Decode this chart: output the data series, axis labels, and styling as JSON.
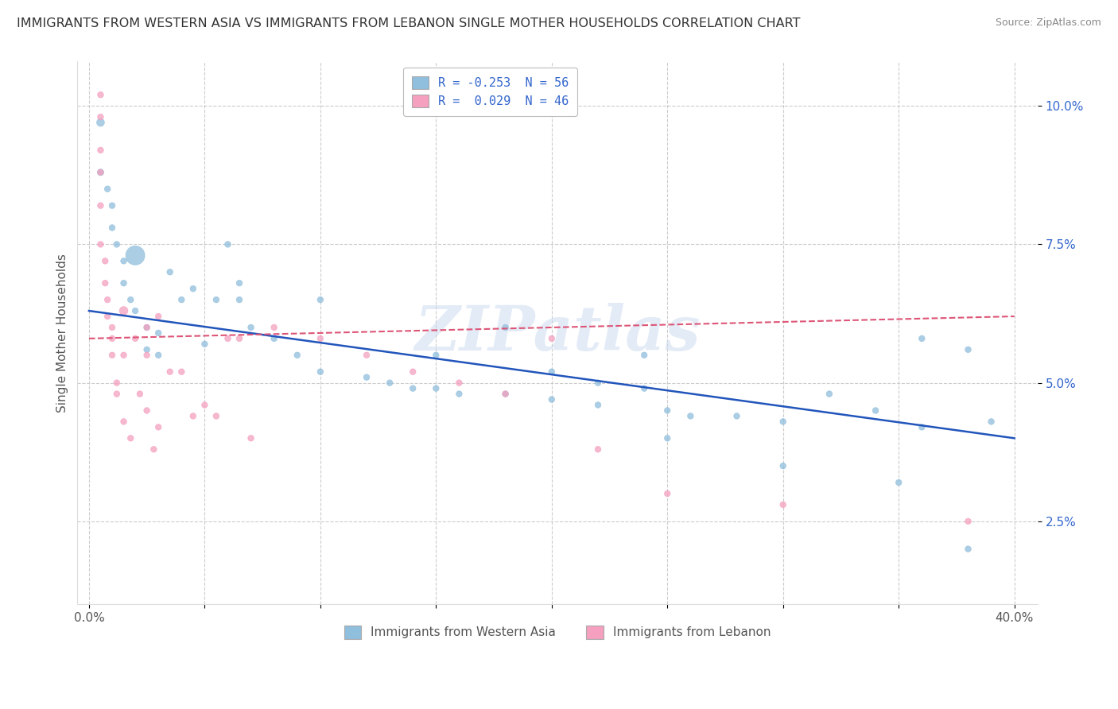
{
  "title": "IMMIGRANTS FROM WESTERN ASIA VS IMMIGRANTS FROM LEBANON SINGLE MOTHER HOUSEHOLDS CORRELATION CHART",
  "source": "Source: ZipAtlas.com",
  "ylabel": "Single Mother Households",
  "yticks_vals": [
    0.025,
    0.05,
    0.075,
    0.1
  ],
  "yticks_labels": [
    "2.5%",
    "5.0%",
    "7.5%",
    "10.0%"
  ],
  "xticks_vals": [
    0.0,
    0.05,
    0.1,
    0.15,
    0.2,
    0.25,
    0.3,
    0.35,
    0.4
  ],
  "xlim": [
    -0.005,
    0.41
  ],
  "ylim": [
    0.01,
    0.108
  ],
  "legend_blue": "R = -0.253  N = 56",
  "legend_pink": "R =  0.029  N = 46",
  "blue_color": "#90bedd",
  "pink_color": "#f4a0be",
  "blue_line_color": "#2255bb",
  "pink_line_color": "#dd5577",
  "watermark": "ZIPatlas",
  "legend_text_color": "#3366cc",
  "background_color": "#ffffff",
  "grid_color": "#cccccc",
  "blue_line_x": [
    0.0,
    0.4
  ],
  "blue_line_y": [
    0.063,
    0.04
  ],
  "pink_line_x": [
    0.0,
    0.4
  ],
  "pink_line_y": [
    0.058,
    0.062
  ],
  "blue_x": [
    0.005,
    0.005,
    0.008,
    0.01,
    0.01,
    0.012,
    0.015,
    0.015,
    0.018,
    0.02,
    0.02,
    0.025,
    0.025,
    0.03,
    0.03,
    0.035,
    0.04,
    0.045,
    0.05,
    0.055,
    0.06,
    0.065,
    0.065,
    0.07,
    0.08,
    0.09,
    0.1,
    0.1,
    0.12,
    0.13,
    0.14,
    0.15,
    0.15,
    0.16,
    0.18,
    0.18,
    0.2,
    0.2,
    0.22,
    0.22,
    0.24,
    0.24,
    0.25,
    0.26,
    0.28,
    0.3,
    0.32,
    0.34,
    0.36,
    0.36,
    0.38,
    0.39,
    0.25,
    0.3,
    0.35,
    0.38
  ],
  "blue_y": [
    0.097,
    0.088,
    0.085,
    0.078,
    0.082,
    0.075,
    0.072,
    0.068,
    0.065,
    0.063,
    0.073,
    0.06,
    0.056,
    0.059,
    0.055,
    0.07,
    0.065,
    0.067,
    0.057,
    0.065,
    0.075,
    0.065,
    0.068,
    0.06,
    0.058,
    0.055,
    0.052,
    0.065,
    0.051,
    0.05,
    0.049,
    0.049,
    0.055,
    0.048,
    0.06,
    0.048,
    0.047,
    0.052,
    0.046,
    0.05,
    0.049,
    0.055,
    0.045,
    0.044,
    0.044,
    0.043,
    0.048,
    0.045,
    0.042,
    0.058,
    0.056,
    0.043,
    0.04,
    0.035,
    0.032,
    0.02
  ],
  "blue_sizes": [
    50,
    35,
    30,
    30,
    30,
    30,
    30,
    30,
    30,
    30,
    300,
    30,
    30,
    30,
    30,
    30,
    30,
    30,
    30,
    30,
    30,
    30,
    30,
    30,
    30,
    30,
    30,
    30,
    30,
    30,
    30,
    30,
    30,
    30,
    30,
    30,
    30,
    30,
    30,
    30,
    30,
    30,
    30,
    30,
    30,
    30,
    30,
    30,
    30,
    30,
    30,
    30,
    30,
    30,
    30,
    30
  ],
  "pink_x": [
    0.005,
    0.005,
    0.005,
    0.005,
    0.005,
    0.005,
    0.007,
    0.007,
    0.008,
    0.008,
    0.01,
    0.01,
    0.01,
    0.012,
    0.012,
    0.015,
    0.015,
    0.015,
    0.018,
    0.02,
    0.022,
    0.025,
    0.025,
    0.025,
    0.028,
    0.03,
    0.03,
    0.035,
    0.04,
    0.045,
    0.05,
    0.055,
    0.06,
    0.065,
    0.07,
    0.08,
    0.1,
    0.12,
    0.14,
    0.16,
    0.18,
    0.2,
    0.22,
    0.25,
    0.3,
    0.38
  ],
  "pink_y": [
    0.102,
    0.098,
    0.092,
    0.088,
    0.082,
    0.075,
    0.072,
    0.068,
    0.065,
    0.062,
    0.06,
    0.058,
    0.055,
    0.05,
    0.048,
    0.063,
    0.055,
    0.043,
    0.04,
    0.058,
    0.048,
    0.06,
    0.055,
    0.045,
    0.038,
    0.042,
    0.062,
    0.052,
    0.052,
    0.044,
    0.046,
    0.044,
    0.058,
    0.058,
    0.04,
    0.06,
    0.058,
    0.055,
    0.052,
    0.05,
    0.048,
    0.058,
    0.038,
    0.03,
    0.028,
    0.025
  ],
  "pink_sizes": [
    30,
    30,
    30,
    30,
    30,
    30,
    30,
    30,
    30,
    30,
    30,
    30,
    30,
    30,
    30,
    60,
    30,
    30,
    30,
    30,
    30,
    30,
    30,
    30,
    30,
    30,
    30,
    30,
    30,
    30,
    30,
    30,
    30,
    30,
    30,
    30,
    30,
    30,
    30,
    30,
    30,
    30,
    30,
    30,
    30,
    30
  ]
}
